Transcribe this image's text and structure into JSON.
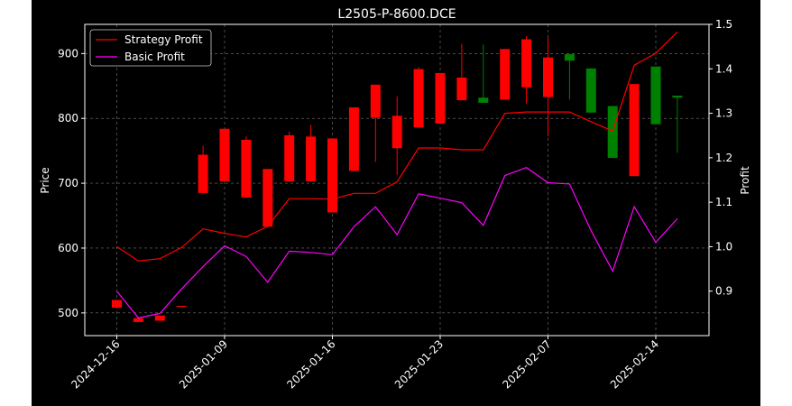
{
  "chart_data": {
    "type": "candlestick-with-lines",
    "title": "L2505-P-8600.DCE",
    "ylabel_left": "Price",
    "ylabel_right": "Profit",
    "xlabel": "",
    "grid": true,
    "legend_position": "upper-left",
    "ylim_left": [
      465,
      945
    ],
    "ylim_right": [
      0.8,
      1.5
    ],
    "yticks_left": [
      500,
      600,
      700,
      800,
      900
    ],
    "yticks_right": [
      0.9,
      1.0,
      1.1,
      1.2,
      1.3,
      1.4,
      1.5
    ],
    "x_ticks": [
      {
        "index": 0,
        "label": "2024-12-16"
      },
      {
        "index": 5,
        "label": "2025-01-09"
      },
      {
        "index": 10,
        "label": "2025-01-16"
      },
      {
        "index": 15,
        "label": "2025-01-23"
      },
      {
        "index": 20,
        "label": "2025-02-07"
      },
      {
        "index": 25,
        "label": "2025-02-14"
      }
    ],
    "candles": [
      {
        "i": 0,
        "open": 508,
        "close": 520,
        "high": 520,
        "low": 508
      },
      {
        "i": 1,
        "open": 486,
        "close": 492,
        "high": 492,
        "low": 486
      },
      {
        "i": 2,
        "open": 488,
        "close": 496,
        "high": 496,
        "low": 488
      },
      {
        "i": 3,
        "open": 511,
        "close": 511,
        "high": 511,
        "low": 511
      },
      {
        "i": 4,
        "open": 685,
        "close": 744,
        "high": 758,
        "low": 685
      },
      {
        "i": 5,
        "open": 703,
        "close": 784,
        "high": 784,
        "low": 703
      },
      {
        "i": 6,
        "open": 678,
        "close": 767,
        "high": 772,
        "low": 678
      },
      {
        "i": 7,
        "open": 633,
        "close": 722,
        "high": 722,
        "low": 633
      },
      {
        "i": 8,
        "open": 703,
        "close": 774,
        "high": 780,
        "low": 703
      },
      {
        "i": 9,
        "open": 703,
        "close": 772,
        "high": 790,
        "low": 703
      },
      {
        "i": 10,
        "open": 655,
        "close": 769,
        "high": 769,
        "low": 655
      },
      {
        "i": 11,
        "open": 719,
        "close": 817,
        "high": 817,
        "low": 719
      },
      {
        "i": 12,
        "open": 801,
        "close": 852,
        "high": 852,
        "low": 733
      },
      {
        "i": 13,
        "open": 754,
        "close": 804,
        "high": 834,
        "low": 713
      },
      {
        "i": 14,
        "open": 786,
        "close": 876,
        "high": 879,
        "low": 786
      },
      {
        "i": 15,
        "open": 792,
        "close": 870,
        "high": 870,
        "low": 792
      },
      {
        "i": 16,
        "open": 828,
        "close": 863,
        "high": 915,
        "low": 828
      },
      {
        "i": 17,
        "open": 832,
        "close": 824,
        "high": 914,
        "low": 824
      },
      {
        "i": 18,
        "open": 829,
        "close": 907,
        "high": 907,
        "low": 829
      },
      {
        "i": 19,
        "open": 848,
        "close": 922,
        "high": 927,
        "low": 823
      },
      {
        "i": 20,
        "open": 833,
        "close": 894,
        "high": 924,
        "low": 772
      },
      {
        "i": 21,
        "open": 899,
        "close": 889,
        "high": 899,
        "low": 829
      },
      {
        "i": 22,
        "open": 877,
        "close": 809,
        "high": 877,
        "low": 809
      },
      {
        "i": 23,
        "open": 819,
        "close": 739,
        "high": 819,
        "low": 739
      },
      {
        "i": 24,
        "open": 711,
        "close": 853,
        "high": 853,
        "low": 711
      },
      {
        "i": 25,
        "open": 880,
        "close": 791,
        "high": 880,
        "low": 791
      },
      {
        "i": 26,
        "open": 835,
        "close": 832,
        "high": 835,
        "low": 747
      }
    ],
    "series": [
      {
        "name": "Strategy Profit",
        "color": "#ff0000",
        "values": [
          1.0,
          0.968,
          0.973,
          0.998,
          1.04,
          1.03,
          1.022,
          1.046,
          1.108,
          1.108,
          1.107,
          1.12,
          1.12,
          1.146,
          1.222,
          1.222,
          1.218,
          1.218,
          1.3,
          1.303,
          1.303,
          1.303,
          1.281,
          1.26,
          1.408,
          1.435,
          1.483
        ]
      },
      {
        "name": "Basic Profit",
        "color": "#ff00ff",
        "values": [
          0.9,
          0.84,
          0.85,
          0.905,
          0.955,
          1.002,
          0.978,
          0.92,
          0.99,
          0.987,
          0.982,
          1.045,
          1.09,
          1.027,
          1.119,
          1.109,
          1.099,
          1.048,
          1.16,
          1.178,
          1.144,
          1.141,
          1.036,
          0.945,
          1.09,
          1.01,
          1.063
        ]
      }
    ]
  }
}
